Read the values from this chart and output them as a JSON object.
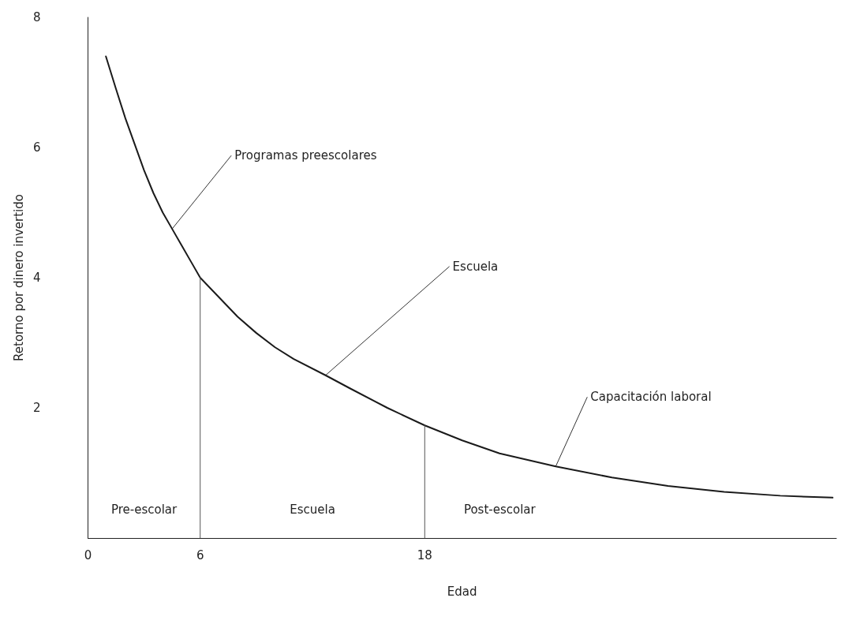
{
  "chart_data": {
    "type": "line",
    "xlabel": "Edad",
    "ylabel": "Retorno por dinero invertido",
    "xlim": [
      0,
      40
    ],
    "xticks": [
      0,
      6,
      18
    ],
    "ylim": [
      0,
      8
    ],
    "yticks": [
      2,
      4,
      6,
      8
    ],
    "grid": false,
    "marker": "none",
    "line_style": "solid",
    "series": [
      {
        "color": "#1a1a1a",
        "x": [
          0.96,
          1.5,
          2,
          2.5,
          3,
          3.5,
          4,
          4.5,
          5,
          5.5,
          6,
          7,
          8,
          9,
          10,
          11,
          12.7,
          14,
          16,
          18,
          20,
          22,
          25,
          28,
          31,
          34,
          37,
          39.8
        ],
        "values": [
          7.4,
          6.9,
          6.45,
          6.05,
          5.65,
          5.3,
          5.0,
          4.75,
          4.5,
          4.25,
          4.0,
          3.7,
          3.4,
          3.15,
          2.93,
          2.75,
          2.5,
          2.3,
          2.0,
          1.73,
          1.5,
          1.3,
          1.1,
          0.93,
          0.8,
          0.71,
          0.65,
          0.62
        ]
      },
      {
        "color": "#555555",
        "x": [
          6,
          6
        ],
        "values": [
          0,
          4.0
        ]
      },
      {
        "color": "#555555",
        "x": [
          18,
          18
        ],
        "values": [
          0,
          1.73
        ]
      }
    ],
    "annotations": [
      {
        "text": "Programas preescolares",
        "x": 4.5,
        "y": 4.75
      },
      {
        "text": "Escuela",
        "x": 12.7,
        "y": 2.5
      },
      {
        "text": "Capacitación laboral",
        "x": 25,
        "y": 1.1
      },
      "Pre-escolar",
      "Escuela",
      "Post-escolar"
    ]
  }
}
